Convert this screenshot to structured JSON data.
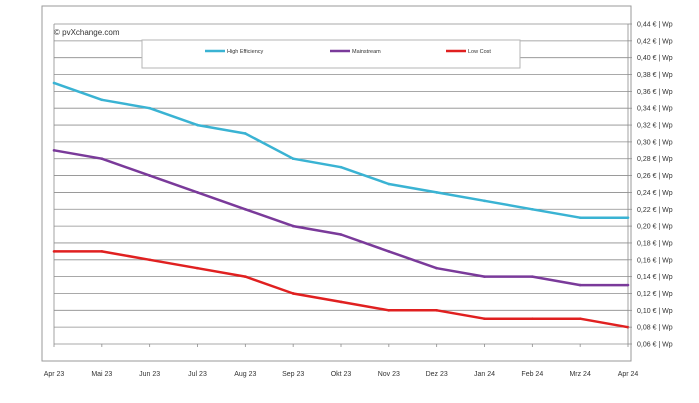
{
  "watermark": "© pvXchange.com",
  "chart_data": {
    "type": "line",
    "categories": [
      "Apr 23",
      "Mai 23",
      "Jun 23",
      "Jul 23",
      "Aug 23",
      "Sep 23",
      "Okt 23",
      "Nov 23",
      "Dez 23",
      "Jan 24",
      "Feb 24",
      "Mrz 24",
      "Apr 24"
    ],
    "series": [
      {
        "name": "High Efficiency",
        "color": "#3ab3d3",
        "values": [
          0.37,
          0.35,
          0.34,
          0.32,
          0.31,
          0.28,
          0.27,
          0.25,
          0.24,
          0.23,
          0.22,
          0.21,
          0.21
        ]
      },
      {
        "name": "Mainstream",
        "color": "#7a3a9a",
        "values": [
          0.29,
          0.28,
          0.26,
          0.24,
          0.22,
          0.2,
          0.19,
          0.17,
          0.15,
          0.14,
          0.14,
          0.13,
          0.13
        ]
      },
      {
        "name": "Low Cost",
        "color": "#e02020",
        "values": [
          0.17,
          0.17,
          0.16,
          0.15,
          0.14,
          0.12,
          0.11,
          0.1,
          0.1,
          0.09,
          0.09,
          0.09,
          0.08
        ]
      }
    ],
    "ylim": [
      0.06,
      0.44
    ],
    "yticks": [
      "0,06 € | Wp",
      "0,08 € | Wp",
      "0,10 € | Wp",
      "0,12 € | Wp",
      "0,14 € | Wp",
      "0,16 € | Wp",
      "0,18 € | Wp",
      "0,20 € | Wp",
      "0,22 € | Wp",
      "0,24 € | Wp",
      "0,26 € | Wp",
      "0,28 € | Wp",
      "0,30 € | Wp",
      "0,32 € | Wp",
      "0,34 € | Wp",
      "0,36 € | Wp",
      "0,38 € | Wp",
      "0,40 € | Wp",
      "0,42 € | Wp",
      "0,44 € | Wp"
    ],
    "grid": true,
    "legend_position": "top-center"
  }
}
